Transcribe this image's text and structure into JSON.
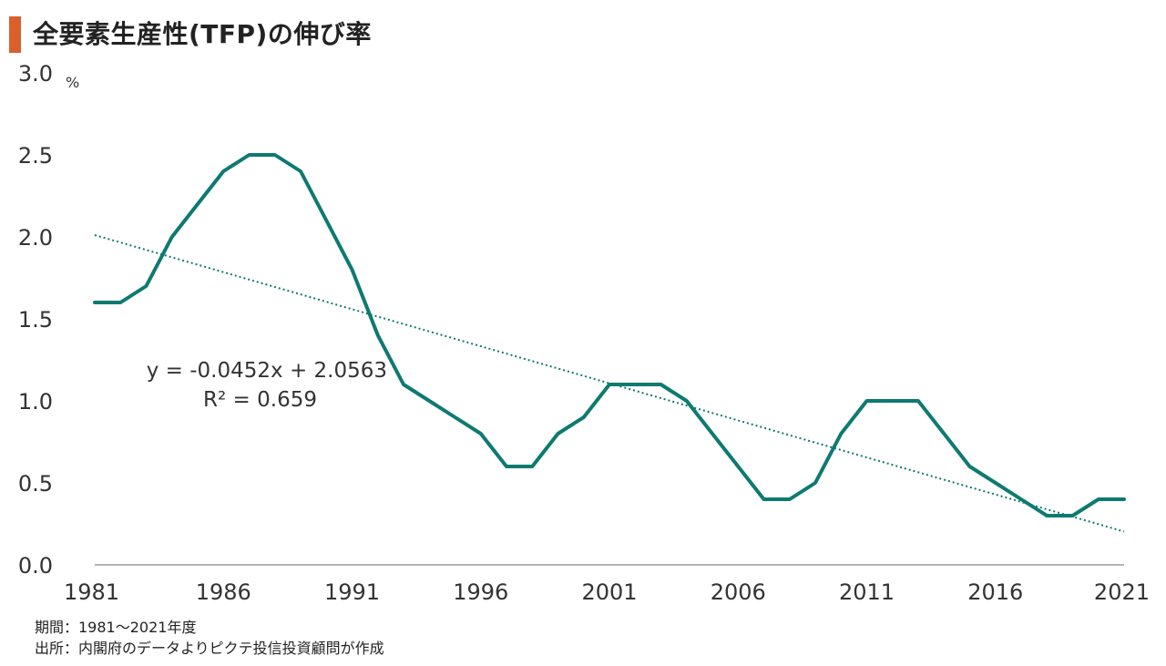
{
  "title": "全要素生産性(TFP)の伸び率",
  "colors": {
    "accent": "#D9602A",
    "line": "#0E7A70",
    "trend": "#0E7A70",
    "axis": "#888888"
  },
  "chart_data": {
    "type": "line",
    "title": "全要素生産性(TFP)の伸び率",
    "unit_label": "%",
    "x": [
      1981,
      1982,
      1983,
      1984,
      1985,
      1986,
      1987,
      1988,
      1989,
      1990,
      1991,
      1992,
      1993,
      1994,
      1995,
      1996,
      1997,
      1998,
      1999,
      2000,
      2001,
      2002,
      2003,
      2004,
      2005,
      2006,
      2007,
      2008,
      2009,
      2010,
      2011,
      2012,
      2013,
      2014,
      2015,
      2016,
      2017,
      2018,
      2019,
      2020,
      2021
    ],
    "series": [
      {
        "values": [
          1.6,
          1.6,
          1.7,
          2.0,
          2.2,
          2.4,
          2.5,
          2.5,
          2.4,
          2.1,
          1.8,
          1.4,
          1.1,
          1.0,
          0.9,
          0.8,
          0.6,
          0.6,
          0.8,
          0.9,
          1.1,
          1.1,
          1.1,
          1.0,
          0.8,
          0.6,
          0.4,
          0.4,
          0.5,
          0.8,
          1.0,
          1.0,
          1.0,
          0.8,
          0.6,
          0.5,
          0.4,
          0.3,
          0.3,
          0.4,
          0.4
        ]
      }
    ],
    "trendline": {
      "type": "linear",
      "slope": -0.0452,
      "intercept": 2.0563,
      "style": "dotted"
    },
    "annotations": [
      "y = -0.0452x + 2.0563",
      "R² = 0.659"
    ],
    "x_ticks": [
      "1981",
      "1986",
      "1991",
      "1996",
      "2001",
      "2006",
      "2011",
      "2016",
      "2021"
    ],
    "y_ticks": [
      "0.0",
      "0.5",
      "1.0",
      "1.5",
      "2.0",
      "2.5",
      "3.0"
    ],
    "ylim": [
      0,
      3.0
    ],
    "xlim": [
      1981,
      2021
    ],
    "grid": false,
    "legend": "none"
  },
  "notes": {
    "period": "期間：1981～2021年度",
    "source": "出所：内閣府のデータよりピクテ投信投資顧問が作成"
  }
}
